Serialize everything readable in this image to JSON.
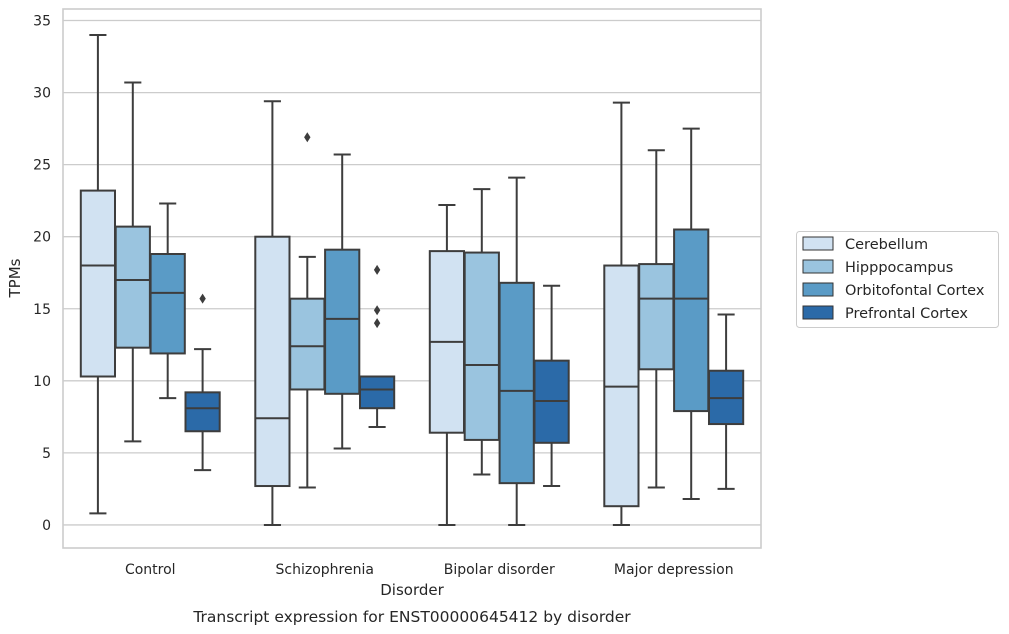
{
  "chart_data": {
    "type": "box",
    "caption": "Transcript expression for ENST00000645412 by disorder",
    "xlabel": "Disorder",
    "ylabel": "TPMs",
    "ylim": [
      -1.6,
      35.8
    ],
    "yticks": [
      0,
      5,
      10,
      15,
      20,
      25,
      30,
      35
    ],
    "grid": "horizontal",
    "legend_position": "right",
    "categories": [
      "Control",
      "Schizophrenia",
      "Bipolar disorder",
      "Major depression"
    ],
    "series": [
      {
        "name": "Cerebellum",
        "color": "#d1e2f2",
        "boxes": [
          {
            "whisker_low": 0.8,
            "q1": 10.3,
            "median": 18.0,
            "q3": 23.2,
            "whisker_high": 34.0,
            "outliers": []
          },
          {
            "whisker_low": 0.0,
            "q1": 2.7,
            "median": 7.4,
            "q3": 20.0,
            "whisker_high": 29.4,
            "outliers": []
          },
          {
            "whisker_low": 0.0,
            "q1": 6.4,
            "median": 12.7,
            "q3": 19.0,
            "whisker_high": 22.2,
            "outliers": []
          },
          {
            "whisker_low": 0.0,
            "q1": 1.3,
            "median": 9.6,
            "q3": 18.0,
            "whisker_high": 29.3,
            "outliers": []
          }
        ]
      },
      {
        "name": "Hipppocampus",
        "color": "#9ac4df",
        "boxes": [
          {
            "whisker_low": 5.8,
            "q1": 12.3,
            "median": 17.0,
            "q3": 20.7,
            "whisker_high": 30.7,
            "outliers": []
          },
          {
            "whisker_low": 2.6,
            "q1": 9.4,
            "median": 12.4,
            "q3": 15.7,
            "whisker_high": 18.6,
            "outliers": [
              26.9
            ]
          },
          {
            "whisker_low": 3.5,
            "q1": 5.9,
            "median": 11.1,
            "q3": 18.9,
            "whisker_high": 23.3,
            "outliers": []
          },
          {
            "whisker_low": 2.6,
            "q1": 10.8,
            "median": 15.7,
            "q3": 18.1,
            "whisker_high": 26.0,
            "outliers": []
          }
        ]
      },
      {
        "name": "Orbitofontal Cortex",
        "color": "#5a9bc6",
        "boxes": [
          {
            "whisker_low": 8.8,
            "q1": 11.9,
            "median": 16.1,
            "q3": 18.8,
            "whisker_high": 22.3,
            "outliers": []
          },
          {
            "whisker_low": 5.3,
            "q1": 9.1,
            "median": 14.3,
            "q3": 19.1,
            "whisker_high": 25.7,
            "outliers": []
          },
          {
            "whisker_low": 0.0,
            "q1": 2.9,
            "median": 9.3,
            "q3": 16.8,
            "whisker_high": 24.1,
            "outliers": []
          },
          {
            "whisker_low": 1.8,
            "q1": 7.9,
            "median": 15.7,
            "q3": 20.5,
            "whisker_high": 27.5,
            "outliers": []
          }
        ]
      },
      {
        "name": "Prefrontal Cortex",
        "color": "#2b6aa8",
        "boxes": [
          {
            "whisker_low": 3.8,
            "q1": 6.5,
            "median": 8.1,
            "q3": 9.2,
            "whisker_high": 12.2,
            "outliers": [
              15.7
            ]
          },
          {
            "whisker_low": 6.8,
            "q1": 8.1,
            "median": 9.4,
            "q3": 10.3,
            "whisker_high": 10.3,
            "outliers": [
              17.7,
              14.9,
              14.0
            ]
          },
          {
            "whisker_low": 2.7,
            "q1": 5.7,
            "median": 8.6,
            "q3": 11.4,
            "whisker_high": 16.6,
            "outliers": []
          },
          {
            "whisker_low": 2.5,
            "q1": 7.0,
            "median": 8.8,
            "q3": 10.7,
            "whisker_high": 14.6,
            "outliers": []
          }
        ]
      }
    ],
    "colors": {
      "grid": "#cccccc",
      "spine": "#cccccc",
      "box_edge": "#3d3d3d",
      "text": "#262626"
    }
  }
}
